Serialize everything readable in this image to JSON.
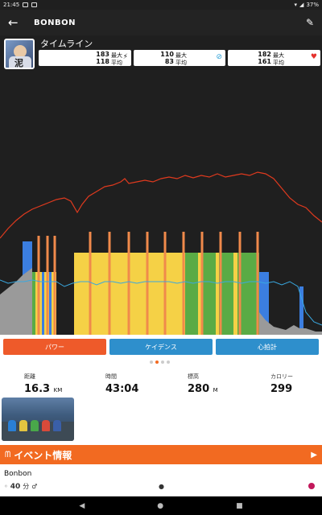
{
  "status_bar": {
    "time": "21:45",
    "battery": "37%"
  },
  "app_bar": {
    "back_icon": "arrow-left-icon",
    "title": "BONBON",
    "edit_icon": "edit-icon"
  },
  "timeline": {
    "title": "タイムライン",
    "avatar_text": "泥",
    "stats": [
      {
        "max": "183",
        "max_label": "最大",
        "avg": "118",
        "avg_label": "平均",
        "icon": "lightning-icon",
        "color": "#111111"
      },
      {
        "max": "110",
        "max_label": "最大",
        "avg": "83",
        "avg_label": "平均",
        "icon": "cadence-icon",
        "color": "#2a9fd6"
      },
      {
        "max": "182",
        "max_label": "最大",
        "avg": "161",
        "avg_label": "平均",
        "icon": "heart-icon",
        "color": "#e5322d"
      }
    ]
  },
  "chart_data": {
    "type": "area",
    "description_series": [
      {
        "name": "パワー",
        "color": "#f5c842"
      },
      {
        "name": "ケイデンス",
        "color": "#39a8e0"
      },
      {
        "name": "心拍計",
        "color": "#e03a1e"
      }
    ]
  },
  "buttons": [
    {
      "label": "パワー",
      "color": "#ee5a2a"
    },
    {
      "label": "ケイデンス",
      "color": "#2e8fcc"
    },
    {
      "label": "心拍計",
      "color": "#2e8fcc"
    }
  ],
  "metrics": [
    {
      "label": "距離",
      "value": "16.3",
      "unit": "KM"
    },
    {
      "label": "時間",
      "value": "43:04",
      "unit": ""
    },
    {
      "label": "標高",
      "value": "280",
      "unit": "M"
    },
    {
      "label": "カロリー",
      "value": "299",
      "unit": ""
    }
  ],
  "event": {
    "bar_label": "イベント情報",
    "name": "Bonbon",
    "duration": "40",
    "duration_unit": "分"
  },
  "colors": {
    "accent": "#f26a21",
    "dark": "#1f1f1f"
  }
}
